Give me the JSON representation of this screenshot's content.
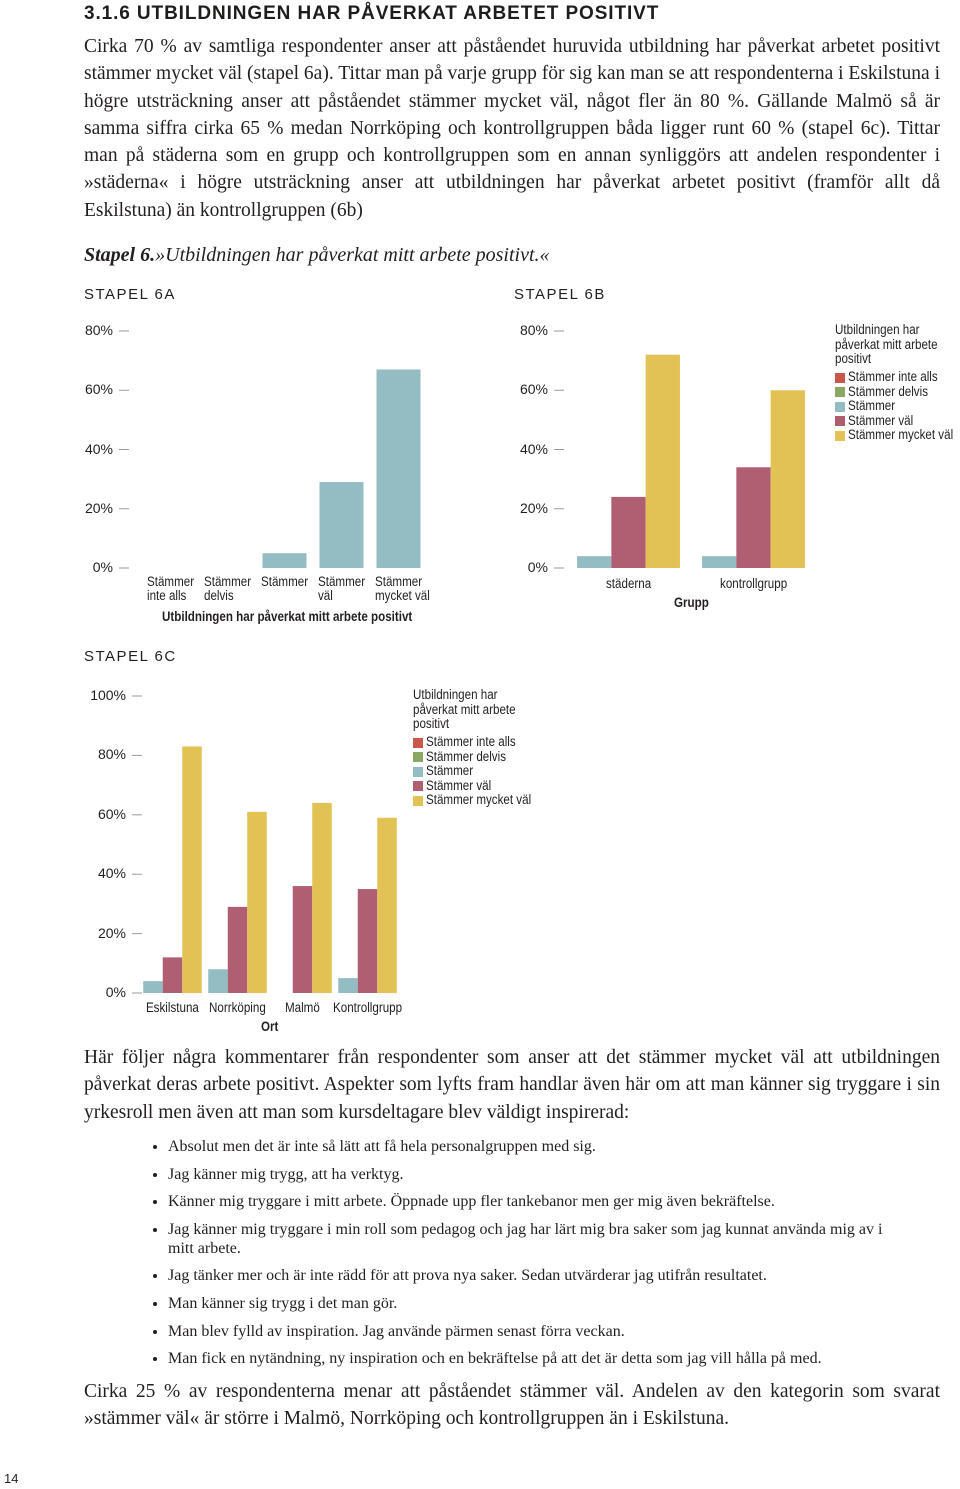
{
  "heading": "3.1.6 UTBILDNINGEN HAR PÅVERKAT ARBETET POSITIVT",
  "paragraphs": [
    "Cirka 70 % av samtliga respondenter anser att påståendet huruvida utbildning har påverkat arbetet positivt stämmer mycket väl (stapel 6a). Tittar man på varje grupp för sig kan man se att respondenterna i Eskilstuna i högre utsträckning anser att påståendet stämmer mycket väl, något fler än 80 %. Gällande Malmö så är samma siffra cirka 65 % medan Norrköping och kontrollgruppen båda ligger runt 60 % (stapel 6c). Tittar man på städerna som en grupp och kontrollgruppen som en annan synliggörs att andelen respondenter i »städerna« i högre utsträckning anser att utbildningen har påverkat arbetet positivt (framför allt då Eskilstuna) än kontrollgruppen (6b)",
    "Här följer några kommentarer från respondenter som anser att det stämmer mycket väl att utbildningen påverkat deras arbete positivt. Aspekter som lyfts fram handlar även här om att man känner sig tryggare i sin yrkesroll men även att man som kursdeltagare blev väldigt inspirerad:",
    "Cirka 25 % av respondenterna menar att påståendet stämmer väl. Andelen av den kategorin som svarat »stämmer väl« är större i Malmö, Norrköping och kontrollgruppen än i Eskilstuna."
  ],
  "caption": {
    "label": "Stapel 6.",
    "text": "»Utbildningen har påverkat mitt arbete positivt.«"
  },
  "bullets": [
    "Absolut men det är inte så lätt att få hela personalgruppen med sig.",
    "Jag känner mig trygg, att ha verktyg.",
    "Känner mig tryggare i mitt arbete. Öppnade upp fler tankebanor men ger mig även bekräftelse.",
    "Jag känner mig tryggare i min roll som pedagog och jag har lärt mig bra saker som jag kunnat använda mig av i mitt arbete.",
    "Jag tänker mer och är inte rädd för att prova nya saker. Sedan utvärderar jag utifrån resultatet.",
    "Man känner sig trygg i det man gör.",
    "Man blev fylld av inspiration. Jag använde pärmen senast förra veckan.",
    "Man fick en nytändning, ny inspiration och en bekräftelse på att det är detta som jag vill hålla på med."
  ],
  "page_number": "14",
  "chart_data": [
    {
      "type": "bar",
      "title": "STAPEL 6A",
      "categories": [
        "Stämmer inte alls",
        "Stämmer delvis",
        "Stämmer",
        "Stämmer väl",
        "Stämmer mycket väl"
      ],
      "values": [
        0,
        0,
        5,
        29,
        67
      ],
      "color": "#93bcc3",
      "xlabel": "Utbildningen har påverkat mitt arbete positivt",
      "ylim": [
        0,
        80
      ],
      "yticks": [
        {
          "value": 0,
          "label": "0%"
        },
        {
          "value": 20,
          "label": "20%"
        },
        {
          "value": 40,
          "label": "40%"
        },
        {
          "value": 60,
          "label": "60%"
        },
        {
          "value": 80,
          "label": "80%"
        }
      ]
    },
    {
      "type": "bar",
      "title": "STAPEL 6B",
      "categories": [
        "städerna",
        "kontrollgrupp"
      ],
      "xlabel": "Grupp",
      "legend_title": "Utbildningen har påverkat mitt arbete positivt",
      "series": [
        {
          "name": "Stämmer inte alls",
          "color": "#c9574a",
          "values": [
            0,
            0
          ]
        },
        {
          "name": "Stämmer delvis",
          "color": "#8aa864",
          "values": [
            0,
            0
          ]
        },
        {
          "name": "Stämmer",
          "color": "#93bcc3",
          "values": [
            4,
            4
          ]
        },
        {
          "name": "Stämmer väl",
          "color": "#b05e72",
          "values": [
            24,
            34
          ]
        },
        {
          "name": "Stämmer mycket väl",
          "color": "#e2c255",
          "values": [
            72,
            60
          ]
        }
      ],
      "ylim": [
        0,
        80
      ],
      "yticks": [
        {
          "value": 0,
          "label": "0%"
        },
        {
          "value": 20,
          "label": "20%"
        },
        {
          "value": 40,
          "label": "40%"
        },
        {
          "value": 60,
          "label": "60%"
        },
        {
          "value": 80,
          "label": "80%"
        }
      ]
    },
    {
      "type": "bar",
      "title": "STAPEL 6C",
      "categories": [
        "Eskilstuna",
        "Norrköping",
        "Malmö",
        "Kontrollgrupp"
      ],
      "xlabel": "Ort",
      "legend_title": "Utbildningen har påverkat mitt arbete positivt",
      "series": [
        {
          "name": "Stämmer inte alls",
          "color": "#c9574a",
          "values": [
            0,
            0,
            0,
            0
          ]
        },
        {
          "name": "Stämmer delvis",
          "color": "#8aa864",
          "values": [
            0,
            0,
            0,
            0
          ]
        },
        {
          "name": "Stämmer",
          "color": "#93bcc3",
          "values": [
            4,
            8,
            0,
            5
          ]
        },
        {
          "name": "Stämmer väl",
          "color": "#b05e72",
          "values": [
            12,
            29,
            36,
            35
          ]
        },
        {
          "name": "Stämmer mycket väl",
          "color": "#e2c255",
          "values": [
            83,
            61,
            64,
            59
          ]
        }
      ],
      "ylim": [
        0,
        100
      ],
      "yticks": [
        {
          "value": 0,
          "label": "0%"
        },
        {
          "value": 20,
          "label": "20%"
        },
        {
          "value": 40,
          "label": "40%"
        },
        {
          "value": 60,
          "label": "60%"
        },
        {
          "value": 80,
          "label": "80%"
        },
        {
          "value": 100,
          "label": "100%"
        }
      ]
    }
  ]
}
